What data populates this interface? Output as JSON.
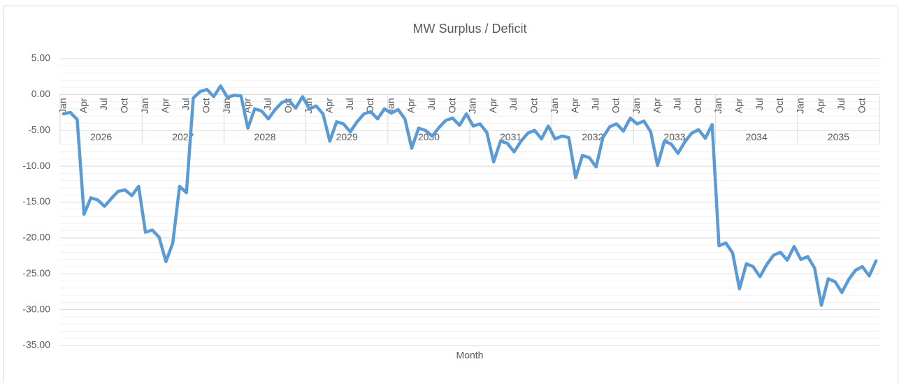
{
  "chart_data": {
    "type": "line",
    "title": "MW Surplus / Deficit",
    "x_label": "Month",
    "categories": [
      "Jan",
      null,
      null,
      "Apr",
      null,
      null,
      "Jul",
      null,
      null,
      "Oct",
      null,
      null,
      "Jan",
      null,
      null,
      "Apr",
      null,
      null,
      "Jul",
      null,
      null,
      "Oct",
      null,
      null,
      "Jan",
      null,
      null,
      "Apr",
      null,
      null,
      "Jul",
      null,
      null,
      "Oct",
      null,
      null,
      "Jan",
      null,
      null,
      "Apr",
      null,
      null,
      "Jul",
      null,
      null,
      "Oct",
      null,
      null,
      "Jan",
      null,
      null,
      "Apr",
      null,
      null,
      "Jul",
      null,
      null,
      "Oct",
      null,
      null,
      "Jan",
      null,
      null,
      "Apr",
      null,
      null,
      "Jul",
      null,
      null,
      "Oct",
      null,
      null,
      "Jan",
      null,
      null,
      "Apr",
      null,
      null,
      "Jul",
      null,
      null,
      "Oct",
      null,
      null,
      "Jan",
      null,
      null,
      "Apr",
      null,
      null,
      "Jul",
      null,
      null,
      "Oct",
      null,
      null,
      "Jan",
      null,
      null,
      "Apr",
      null,
      null,
      "Jul",
      null,
      null,
      "Oct",
      null,
      null,
      "Jan",
      null,
      null,
      "Apr",
      null,
      null,
      "Jul",
      null,
      null,
      "Oct",
      null,
      null
    ],
    "years": [
      "2026",
      "2027",
      "2028",
      "2029",
      "2030",
      "2031",
      "2032",
      "2033",
      "2034",
      "2035"
    ],
    "values": [
      -2.7,
      -2.5,
      -3.5,
      -16.7,
      -14.4,
      -14.7,
      -15.6,
      -14.5,
      -13.5,
      -13.3,
      -14.1,
      -12.8,
      -19.2,
      -18.9,
      -19.9,
      -23.3,
      -20.7,
      -12.8,
      -13.7,
      -0.5,
      0.4,
      0.7,
      -0.3,
      1.2,
      -0.4,
      -0.1,
      -0.2,
      -4.7,
      -2.0,
      -2.3,
      -3.4,
      -2.1,
      -1.1,
      -0.8,
      -1.9,
      -0.3,
      -2.0,
      -1.6,
      -2.7,
      -6.5,
      -3.8,
      -4.1,
      -5.2,
      -3.8,
      -2.7,
      -2.4,
      -3.4,
      -2.0,
      -2.6,
      -2.1,
      -3.4,
      -7.5,
      -4.7,
      -5.0,
      -5.8,
      -4.6,
      -3.6,
      -3.3,
      -4.3,
      -2.7,
      -4.4,
      -4.1,
      -5.3,
      -9.4,
      -6.5,
      -6.8,
      -8.0,
      -6.5,
      -5.4,
      -5.0,
      -6.2,
      -4.4,
      -6.2,
      -5.8,
      -6.0,
      -11.6,
      -8.5,
      -8.8,
      -10.1,
      -6.0,
      -4.5,
      -4.1,
      -5.1,
      -3.3,
      -4.1,
      -3.7,
      -5.2,
      -9.9,
      -6.5,
      -6.9,
      -8.2,
      -6.6,
      -5.4,
      -4.9,
      -6.1,
      -4.2,
      -21.1,
      -20.7,
      -22.1,
      -27.1,
      -23.6,
      -24.0,
      -25.4,
      -23.7,
      -22.4,
      -22.0,
      -23.1,
      -21.2,
      -23.0,
      -22.6,
      -24.2,
      -29.4,
      -25.7,
      -26.1,
      -27.6,
      -25.8,
      -24.5,
      -24.0,
      -25.3,
      -23.2
    ],
    "color": "#5b9bd5",
    "ylim": [
      -35,
      5
    ],
    "yticks": [
      {
        "value": 5,
        "label": "5.00"
      },
      {
        "value": 0,
        "label": "0.00"
      },
      {
        "value": -5,
        "label": "-5.00"
      },
      {
        "value": -10,
        "label": "-10.00"
      },
      {
        "value": -15,
        "label": "-15.00"
      },
      {
        "value": -20,
        "label": "-20.00"
      },
      {
        "value": -25,
        "label": "-25.00"
      },
      {
        "value": -30,
        "label": "-30.00"
      },
      {
        "value": -35,
        "label": "-35.00"
      }
    ],
    "minor_yticks": [
      4,
      3,
      2,
      1,
      -1,
      -2,
      -3,
      -4,
      -6,
      -7,
      -8,
      -9,
      -11,
      -12,
      -13,
      -14,
      -16,
      -17,
      -18,
      -19,
      -21,
      -22,
      -23,
      -24,
      -26,
      -27,
      -28,
      -29,
      -31,
      -32,
      -33,
      -34
    ],
    "grid": true
  }
}
